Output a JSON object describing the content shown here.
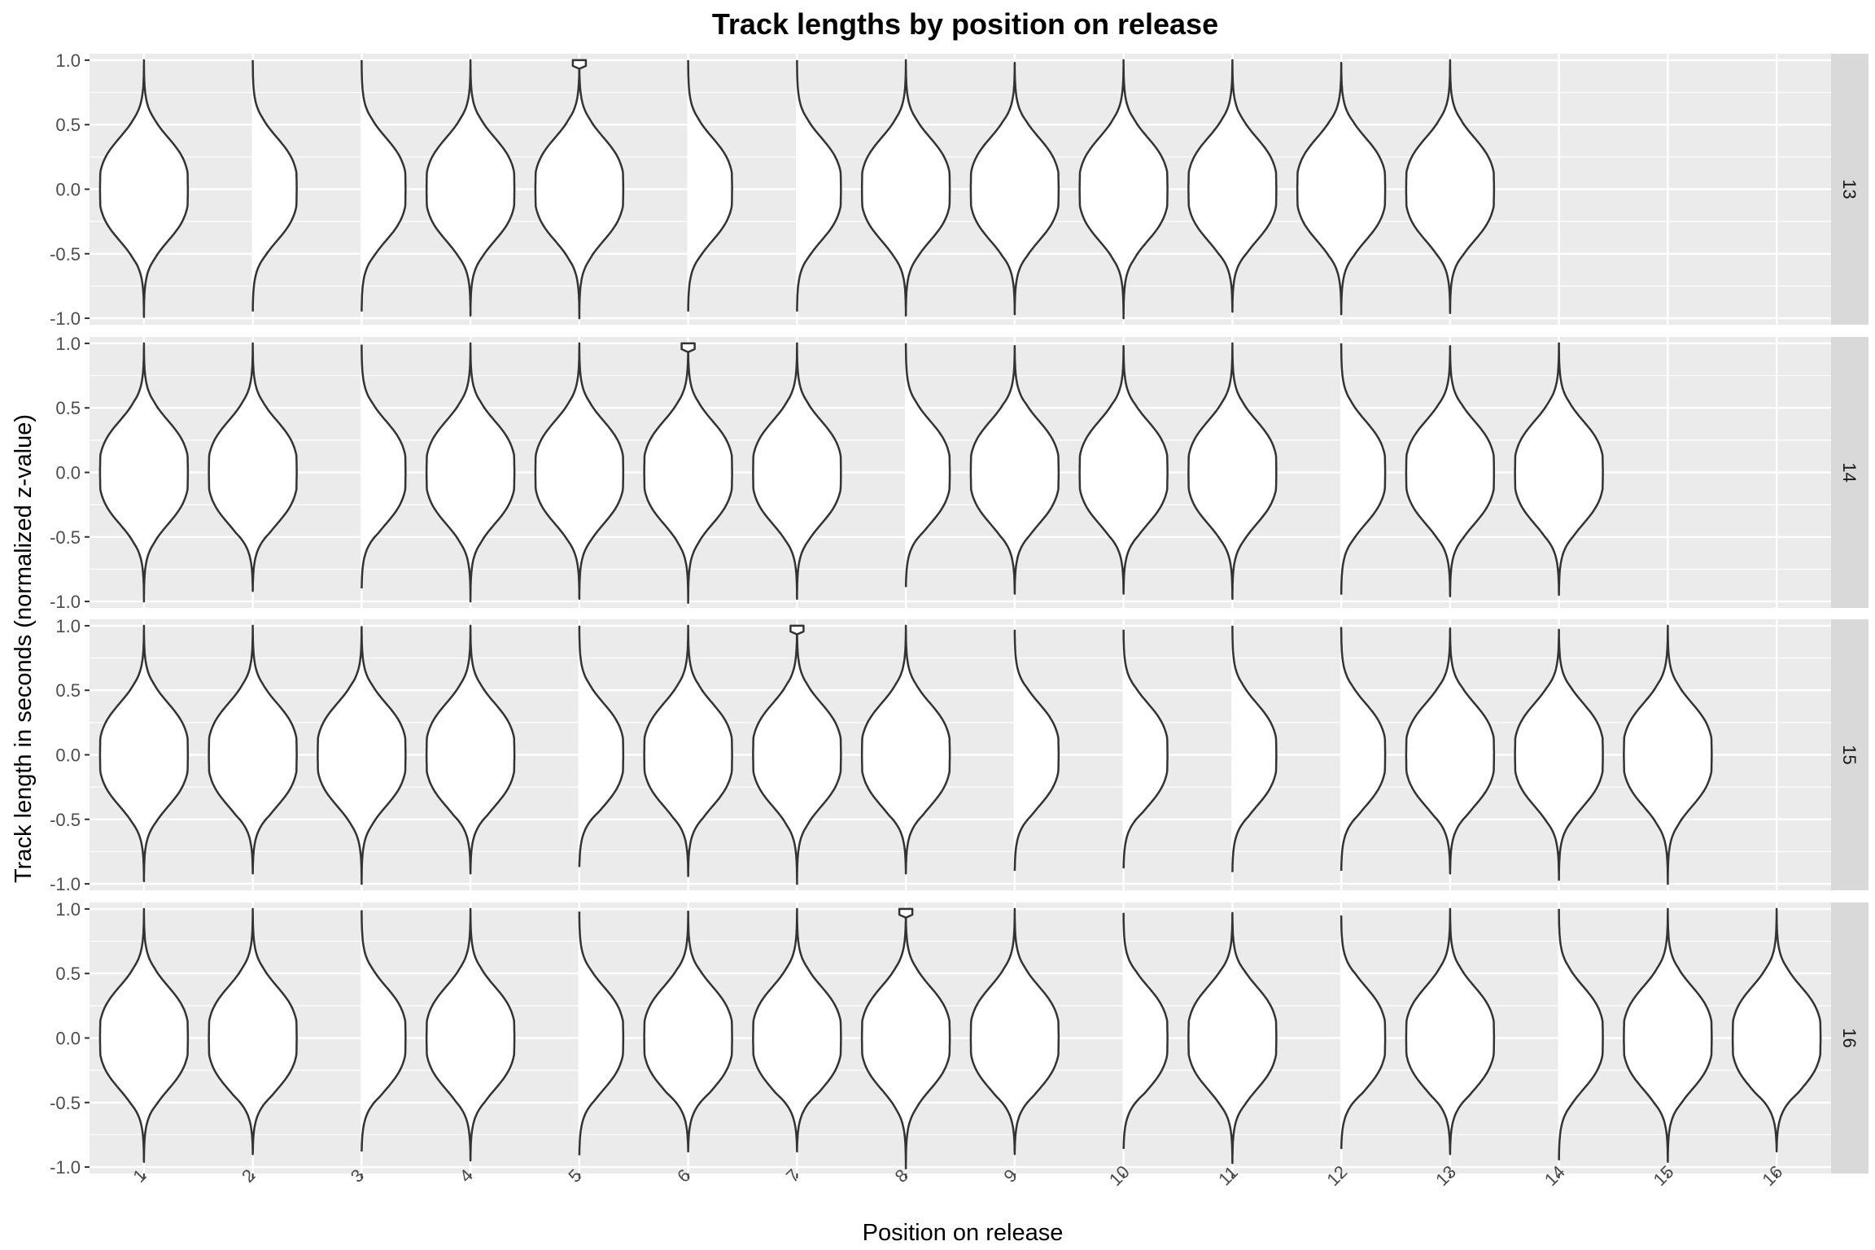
{
  "chart_data": {
    "type": "violin",
    "title": "Track lengths by position on release",
    "xlabel": "Position on release",
    "ylabel": "Track length in seconds (normalized z-value)",
    "x_categories": [
      "1",
      "2",
      "3",
      "4",
      "5",
      "6",
      "7",
      "8",
      "9",
      "10",
      "11",
      "12",
      "13",
      "14",
      "15",
      "16"
    ],
    "y_ticks": [
      -1.0,
      -0.5,
      0.0,
      0.5,
      1.0
    ],
    "y_tick_labels": [
      "-1.0",
      "-0.5",
      "0.0",
      "0.5",
      "1.0"
    ],
    "ylim": [
      -1.05,
      1.05
    ],
    "facet": "rows",
    "grid": true,
    "panels": [
      {
        "strip_label": "13",
        "violins": [
          {
            "position": 1,
            "ymin": -0.99,
            "ymax": 1.0
          },
          {
            "position": 2,
            "ymin": -0.97,
            "ymax": 1.0
          },
          {
            "position": 3,
            "ymin": -0.97,
            "ymax": 1.0
          },
          {
            "position": 4,
            "ymin": -0.98,
            "ymax": 1.0
          },
          {
            "position": 5,
            "ymin": -1.0,
            "ymax": 1.0,
            "flat_top": true
          },
          {
            "position": 6,
            "ymin": -0.97,
            "ymax": 1.0
          },
          {
            "position": 7,
            "ymin": -0.97,
            "ymax": 1.0
          },
          {
            "position": 8,
            "ymin": -0.98,
            "ymax": 1.0
          },
          {
            "position": 9,
            "ymin": -0.97,
            "ymax": 0.98
          },
          {
            "position": 10,
            "ymin": -1.0,
            "ymax": 1.0
          },
          {
            "position": 11,
            "ymin": -0.95,
            "ymax": 1.0
          },
          {
            "position": 12,
            "ymin": -0.97,
            "ymax": 0.98
          },
          {
            "position": 13,
            "ymin": -0.96,
            "ymax": 1.0
          }
        ]
      },
      {
        "strip_label": "14",
        "violins": [
          {
            "position": 1,
            "ymin": -1.0,
            "ymax": 1.0
          },
          {
            "position": 2,
            "ymin": -0.92,
            "ymax": 1.0
          },
          {
            "position": 3,
            "ymin": -0.92,
            "ymax": 0.99
          },
          {
            "position": 4,
            "ymin": -1.0,
            "ymax": 1.0
          },
          {
            "position": 5,
            "ymin": -0.98,
            "ymax": 1.0
          },
          {
            "position": 6,
            "ymin": -1.01,
            "ymax": 1.0,
            "flat_top": true
          },
          {
            "position": 7,
            "ymin": -0.98,
            "ymax": 1.0
          },
          {
            "position": 8,
            "ymin": -0.91,
            "ymax": 1.0
          },
          {
            "position": 9,
            "ymin": -0.94,
            "ymax": 0.98
          },
          {
            "position": 10,
            "ymin": -0.94,
            "ymax": 0.98
          },
          {
            "position": 11,
            "ymin": -0.98,
            "ymax": 1.0
          },
          {
            "position": 12,
            "ymin": -0.97,
            "ymax": 1.0
          },
          {
            "position": 13,
            "ymin": -0.96,
            "ymax": 0.98
          },
          {
            "position": 14,
            "ymin": -0.95,
            "ymax": 1.0
          }
        ]
      },
      {
        "strip_label": "15",
        "violins": [
          {
            "position": 1,
            "ymin": -0.98,
            "ymax": 1.0
          },
          {
            "position": 2,
            "ymin": -0.92,
            "ymax": 1.0
          },
          {
            "position": 3,
            "ymin": -1.0,
            "ymax": 0.99
          },
          {
            "position": 4,
            "ymin": -0.92,
            "ymax": 1.0
          },
          {
            "position": 5,
            "ymin": -0.89,
            "ymax": 1.0
          },
          {
            "position": 6,
            "ymin": -0.94,
            "ymax": 1.0
          },
          {
            "position": 7,
            "ymin": -1.0,
            "ymax": 1.0,
            "flat_top": true
          },
          {
            "position": 8,
            "ymin": -0.92,
            "ymax": 1.0
          },
          {
            "position": 9,
            "ymin": -0.92,
            "ymax": 0.97
          },
          {
            "position": 10,
            "ymin": -0.9,
            "ymax": 0.97
          },
          {
            "position": 11,
            "ymin": -0.93,
            "ymax": 1.0
          },
          {
            "position": 12,
            "ymin": -0.92,
            "ymax": 0.99
          },
          {
            "position": 13,
            "ymin": -0.92,
            "ymax": 0.98
          },
          {
            "position": 14,
            "ymin": -0.97,
            "ymax": 0.97
          },
          {
            "position": 15,
            "ymin": -1.0,
            "ymax": 1.0
          }
        ]
      },
      {
        "strip_label": "16",
        "violins": [
          {
            "position": 1,
            "ymin": -0.96,
            "ymax": 1.0
          },
          {
            "position": 2,
            "ymin": -0.9,
            "ymax": 1.0
          },
          {
            "position": 3,
            "ymin": -0.9,
            "ymax": 0.99
          },
          {
            "position": 4,
            "ymin": -0.95,
            "ymax": 1.0
          },
          {
            "position": 5,
            "ymin": -0.93,
            "ymax": 0.98
          },
          {
            "position": 6,
            "ymin": -0.88,
            "ymax": 0.98
          },
          {
            "position": 7,
            "ymin": -0.88,
            "ymax": 1.0
          },
          {
            "position": 8,
            "ymin": -1.01,
            "ymax": 1.0,
            "flat_top": true
          },
          {
            "position": 9,
            "ymin": -0.9,
            "ymax": 1.0
          },
          {
            "position": 10,
            "ymin": -0.88,
            "ymax": 0.97
          },
          {
            "position": 11,
            "ymin": -0.97,
            "ymax": 0.97
          },
          {
            "position": 12,
            "ymin": -0.88,
            "ymax": 0.95
          },
          {
            "position": 13,
            "ymin": -0.9,
            "ymax": 1.0
          },
          {
            "position": 14,
            "ymin": -0.97,
            "ymax": 1.0
          },
          {
            "position": 15,
            "ymin": -0.96,
            "ymax": 1.0
          },
          {
            "position": 16,
            "ymin": -0.88,
            "ymax": 1.0
          }
        ]
      }
    ]
  }
}
